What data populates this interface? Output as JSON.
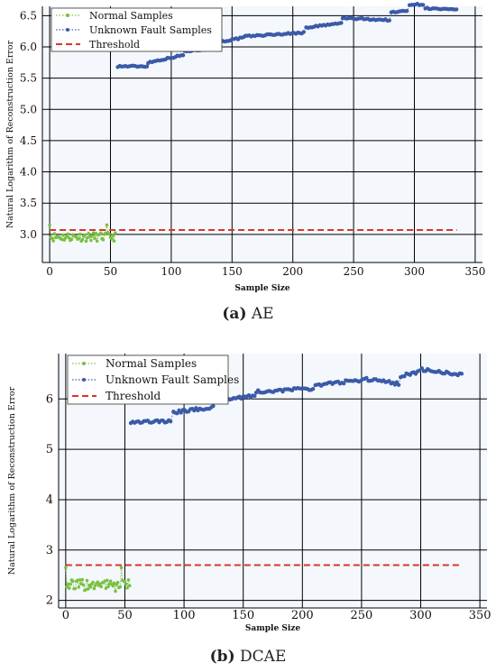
{
  "colors": {
    "normal": "#7ac143",
    "fault": "#3b5ba8",
    "threshold": "#d9362b",
    "plot_bg": "#f4f8fc",
    "grid": "#000000"
  },
  "chart_data": [
    {
      "type": "scatter",
      "caption_letter": "(a)",
      "caption_text": "AE",
      "xlabel": "Sample Size",
      "ylabel": "Natural Logarithm of Reconstruction Error",
      "xlim": [
        -6,
        356
      ],
      "ylim": [
        2.55,
        6.65
      ],
      "xticks": [
        0,
        50,
        100,
        150,
        200,
        250,
        300,
        350
      ],
      "yticks": [
        3.0,
        3.5,
        4.0,
        4.5,
        5.0,
        5.5,
        6.0,
        6.5
      ],
      "ytick_decimals": 1,
      "grid": true,
      "legend_position": "top-left",
      "legend": [
        "Normal Samples",
        "Unknown Fault Samples",
        "Threshold"
      ],
      "threshold": {
        "value": 3.07,
        "x_range": [
          0,
          335
        ]
      },
      "normal": {
        "x_range": [
          0,
          54
        ],
        "count": 55,
        "center": 2.96,
        "amp": 0.07,
        "first_value": 3.15
      },
      "fault": {
        "segments": [
          {
            "x": [
              56,
              80
            ],
            "y": [
              5.69,
              5.69
            ]
          },
          {
            "x": [
              81,
              110
            ],
            "y": [
              5.75,
              5.87
            ]
          },
          {
            "x": [
              111,
              130
            ],
            "y": [
              5.93,
              5.97
            ]
          },
          {
            "x": [
              131,
              160
            ],
            "y": [
              6.05,
              6.15
            ]
          },
          {
            "x": [
              161,
              210
            ],
            "y": [
              6.17,
              6.23
            ]
          },
          {
            "x": [
              211,
              240
            ],
            "y": [
              6.31,
              6.38
            ]
          },
          {
            "x": [
              241,
              280
            ],
            "y": [
              6.46,
              6.43
            ]
          },
          {
            "x": [
              281,
              295
            ],
            "y": [
              6.55,
              6.58
            ]
          },
          {
            "x": [
              296,
              308
            ],
            "y": [
              6.68,
              6.68
            ]
          },
          {
            "x": [
              309,
              335
            ],
            "y": [
              6.62,
              6.59
            ]
          }
        ],
        "step": 1.6,
        "amp": 0.012
      }
    },
    {
      "type": "scatter",
      "caption_letter": "(b)",
      "caption_text": "DCAE",
      "xlabel": "Sample Size",
      "ylabel": "Natural Logarithm of Reconstruction Error",
      "xlim": [
        -6,
        356
      ],
      "ylim": [
        1.85,
        6.9
      ],
      "xticks": [
        0,
        50,
        100,
        150,
        200,
        250,
        300,
        350
      ],
      "yticks": [
        2,
        3,
        4,
        5,
        6
      ],
      "ytick_decimals": 0,
      "grid": true,
      "legend_position": "top-left",
      "legend": [
        "Normal Samples",
        "Unknown Fault Samples",
        "Threshold"
      ],
      "threshold": {
        "value": 2.7,
        "x_range": [
          0,
          335
        ]
      },
      "normal": {
        "x_range": [
          0,
          54
        ],
        "count": 55,
        "center": 2.3,
        "amp": 0.12,
        "first_value": 2.65
      },
      "fault": {
        "segments": [
          {
            "x": [
              55,
              90
            ],
            "y": [
              5.55,
              5.55
            ]
          },
          {
            "x": [
              91,
              125
            ],
            "y": [
              5.73,
              5.84
            ]
          },
          {
            "x": [
              126,
              160
            ],
            "y": [
              5.97,
              6.07
            ]
          },
          {
            "x": [
              161,
              210
            ],
            "y": [
              6.14,
              6.21
            ]
          },
          {
            "x": [
              211,
              250
            ],
            "y": [
              6.27,
              6.38
            ]
          },
          {
            "x": [
              251,
              282
            ],
            "y": [
              6.4,
              6.3
            ]
          },
          {
            "x": [
              283,
              300
            ],
            "y": [
              6.45,
              6.55
            ]
          },
          {
            "x": [
              301,
              335
            ],
            "y": [
              6.58,
              6.48
            ]
          }
        ],
        "step": 1.6,
        "amp": 0.03
      }
    }
  ]
}
